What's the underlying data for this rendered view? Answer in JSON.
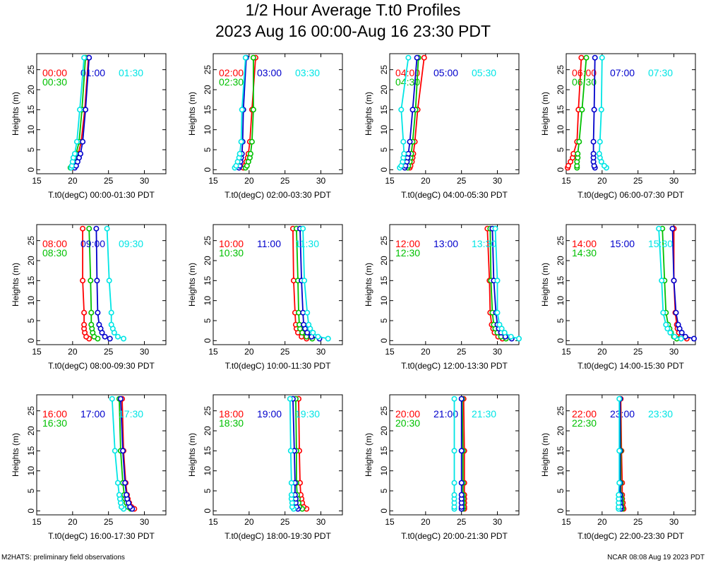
{
  "header": {
    "title": "1/2 Hour Average T.t0 Profiles",
    "subtitle": "2023 Aug 16 00:00-Aug 16 23:30 PDT"
  },
  "footer": {
    "left": "M2HATS: preliminary field observations",
    "right": "NCAR 08:08 Aug 19 2023 PDT"
  },
  "colors": {
    "red": "#ff0000",
    "green": "#00c000",
    "blue": "#0000cc",
    "cyan": "#00e5e5"
  },
  "chart_data": {
    "type": "line",
    "shared": {
      "ylabel": "Heights (m)",
      "xlim": [
        15,
        33
      ],
      "ylim": [
        -1,
        29
      ],
      "xticks": [
        15,
        20,
        25,
        30
      ],
      "yticks": [
        0,
        5,
        10,
        15,
        20,
        25
      ],
      "heights": [
        0.5,
        1,
        2,
        3,
        4,
        7,
        15,
        28
      ],
      "series_order": [
        "red",
        "green",
        "blue",
        "cyan"
      ]
    },
    "panels": [
      {
        "xlabel": "T.t0(degC) 00:00-01:30 PDT",
        "labels": [
          "00:00",
          "00:30",
          "01:00",
          "01:30"
        ],
        "series": [
          [
            20.0,
            20.2,
            20.4,
            20.6,
            20.8,
            21.2,
            21.7,
            22.2
          ],
          [
            19.7,
            19.9,
            20.1,
            20.3,
            20.5,
            20.9,
            21.3,
            21.8
          ],
          [
            20.3,
            20.5,
            20.7,
            20.9,
            21.1,
            21.4,
            21.8,
            22.3
          ],
          [
            19.8,
            19.9,
            20.0,
            20.1,
            20.3,
            20.6,
            21.0,
            21.6
          ]
        ]
      },
      {
        "xlabel": "T.t0(degC) 02:00-03:30 PDT",
        "labels": [
          "02:00",
          "02:30",
          "03:00",
          "03:30"
        ],
        "series": [
          [
            19.2,
            19.4,
            19.6,
            19.8,
            19.9,
            20.1,
            20.4,
            20.9
          ],
          [
            19.5,
            19.7,
            19.9,
            20.1,
            20.2,
            20.4,
            20.6,
            20.6
          ],
          [
            18.6,
            18.7,
            18.8,
            18.9,
            19.0,
            19.1,
            19.2,
            19.6
          ],
          [
            18.0,
            18.2,
            18.4,
            18.6,
            18.7,
            18.9,
            19.0,
            19.5
          ]
        ]
      },
      {
        "xlabel": "T.t0(degC) 04:00-05:30 PDT",
        "labels": [
          "04:00",
          "04:30",
          "05:00",
          "05:30"
        ],
        "series": [
          [
            17.8,
            17.9,
            18.1,
            18.2,
            18.3,
            18.5,
            18.9,
            19.8
          ],
          [
            17.5,
            17.6,
            17.8,
            17.9,
            18.0,
            18.2,
            18.6,
            19.0
          ],
          [
            17.1,
            17.2,
            17.4,
            17.5,
            17.6,
            17.8,
            18.2,
            18.8
          ],
          [
            16.4,
            16.6,
            16.8,
            16.9,
            17.0,
            16.9,
            16.6,
            17.6
          ]
        ]
      },
      {
        "xlabel": "T.t0(degC) 06:00-07:30 PDT",
        "labels": [
          "06:00",
          "06:30",
          "07:00",
          "07:30"
        ],
        "series": [
          [
            15.2,
            15.3,
            15.6,
            15.9,
            16.0,
            16.5,
            16.7,
            17.1
          ],
          [
            16.5,
            16.5,
            16.5,
            16.6,
            16.6,
            16.8,
            17.2,
            17.8
          ],
          [
            19.0,
            18.9,
            18.8,
            18.8,
            18.8,
            18.8,
            18.9,
            19.0
          ],
          [
            20.6,
            20.3,
            19.9,
            19.7,
            19.6,
            19.7,
            19.9,
            20.0
          ]
        ]
      },
      {
        "xlabel": "T.t0(degC) 08:00-09:30 PDT",
        "labels": [
          "08:00",
          "08:30",
          "09:00",
          "09:30"
        ],
        "series": [
          [
            22.3,
            21.9,
            21.7,
            21.6,
            21.6,
            21.6,
            21.4,
            21.4
          ],
          [
            23.5,
            23.0,
            22.8,
            22.7,
            22.6,
            22.6,
            22.5,
            22.3
          ],
          [
            25.2,
            24.5,
            24.1,
            23.9,
            23.7,
            23.5,
            23.4,
            23.3
          ],
          [
            27.1,
            26.3,
            25.8,
            25.6,
            25.4,
            25.4,
            25.1,
            24.8
          ]
        ]
      },
      {
        "xlabel": "T.t0(degC) 10:00-11:30 PDT",
        "labels": [
          "10:00",
          "10:30",
          "11:00",
          "11:30"
        ],
        "series": [
          [
            28.0,
            27.3,
            26.8,
            26.6,
            26.5,
            26.4,
            26.2,
            26.1
          ],
          [
            28.8,
            28.0,
            27.4,
            27.1,
            27.0,
            26.9,
            26.8,
            26.6
          ],
          [
            29.8,
            28.7,
            28.1,
            27.8,
            27.6,
            27.5,
            27.3,
            27.1
          ],
          [
            31.0,
            29.6,
            28.9,
            28.5,
            28.3,
            28.1,
            27.7,
            27.5
          ]
        ]
      },
      {
        "xlabel": "T.t0(degC) 12:00-13:30 PDT",
        "labels": [
          "12:00",
          "12:30",
          "13:00",
          "13:30"
        ],
        "series": [
          [
            30.7,
            30.1,
            29.6,
            29.4,
            29.2,
            29.0,
            28.9,
            28.6
          ],
          [
            31.2,
            30.5,
            30.0,
            29.7,
            29.5,
            29.3,
            29.1,
            29.0
          ],
          [
            32.0,
            31.1,
            30.5,
            30.2,
            30.0,
            29.8,
            29.5,
            29.3
          ],
          [
            33.0,
            31.9,
            31.0,
            30.6,
            30.3,
            30.0,
            30.0,
            29.7
          ]
        ]
      },
      {
        "xlabel": "T.t0(degC) 14:00-15:30 PDT",
        "labels": [
          "14:00",
          "14:30",
          "15:00",
          "15:30"
        ],
        "series": [
          [
            31.8,
            31.0,
            30.7,
            30.5,
            30.4,
            30.2,
            30.0,
            30.0
          ],
          [
            30.4,
            30.0,
            29.6,
            29.4,
            29.2,
            28.9,
            28.7,
            28.4
          ],
          [
            32.8,
            31.6,
            31.1,
            30.8,
            30.6,
            30.3,
            30.0,
            29.8
          ],
          [
            31.0,
            30.1,
            29.5,
            29.1,
            28.9,
            28.5,
            28.3,
            27.9
          ]
        ]
      },
      {
        "xlabel": "T.t0(degC) 16:00-17:30 PDT",
        "labels": [
          "16:00",
          "16:30",
          "17:00",
          "17:30"
        ],
        "series": [
          [
            28.6,
            28.2,
            27.9,
            27.7,
            27.6,
            27.4,
            27.1,
            26.9
          ],
          [
            28.1,
            27.7,
            27.5,
            27.3,
            27.2,
            27.0,
            26.7,
            26.5
          ],
          [
            28.3,
            28.0,
            27.8,
            27.6,
            27.5,
            27.3,
            27.0,
            26.7
          ],
          [
            27.1,
            26.8,
            26.7,
            26.6,
            26.5,
            26.3,
            25.9,
            25.5
          ]
        ]
      },
      {
        "xlabel": "T.t0(degC) 18:00-19:30 PDT",
        "labels": [
          "18:00",
          "18:30",
          "19:00",
          "19:30"
        ],
        "series": [
          [
            28.0,
            27.6,
            27.4,
            27.3,
            27.2,
            27.1,
            27.0,
            26.9
          ],
          [
            27.4,
            27.0,
            26.9,
            26.8,
            26.7,
            26.6,
            26.6,
            26.5
          ],
          [
            26.8,
            26.6,
            26.5,
            26.5,
            26.4,
            26.4,
            26.3,
            26.1
          ],
          [
            26.2,
            26.0,
            26.0,
            25.9,
            25.9,
            25.9,
            25.8,
            25.7
          ]
        ]
      },
      {
        "xlabel": "T.t0(degC) 20:00-21:30 PDT",
        "labels": [
          "20:00",
          "20:30",
          "21:00",
          "21:30"
        ],
        "series": [
          [
            25.4,
            25.4,
            25.4,
            25.4,
            25.4,
            25.4,
            25.4,
            25.3
          ],
          [
            25.2,
            25.2,
            25.2,
            25.2,
            25.2,
            25.2,
            25.2,
            25.1
          ],
          [
            25.0,
            25.0,
            25.0,
            25.0,
            25.0,
            25.0,
            25.0,
            25.0
          ],
          [
            24.0,
            24.0,
            24.0,
            24.0,
            24.0,
            24.0,
            24.0,
            24.0
          ]
        ]
      },
      {
        "xlabel": "T.t0(degC) 22:00-23:30 PDT",
        "labels": [
          "22:00",
          "22:30",
          "23:00",
          "23:30"
        ],
        "series": [
          [
            23.0,
            22.9,
            22.9,
            22.8,
            22.8,
            22.8,
            22.7,
            22.6
          ],
          [
            22.8,
            22.7,
            22.7,
            22.7,
            22.6,
            22.6,
            22.6,
            22.5
          ],
          [
            22.6,
            22.6,
            22.5,
            22.5,
            22.5,
            22.5,
            22.5,
            22.5
          ],
          [
            22.3,
            22.3,
            22.3,
            22.3,
            22.3,
            22.4,
            22.4,
            22.4
          ]
        ]
      }
    ]
  }
}
